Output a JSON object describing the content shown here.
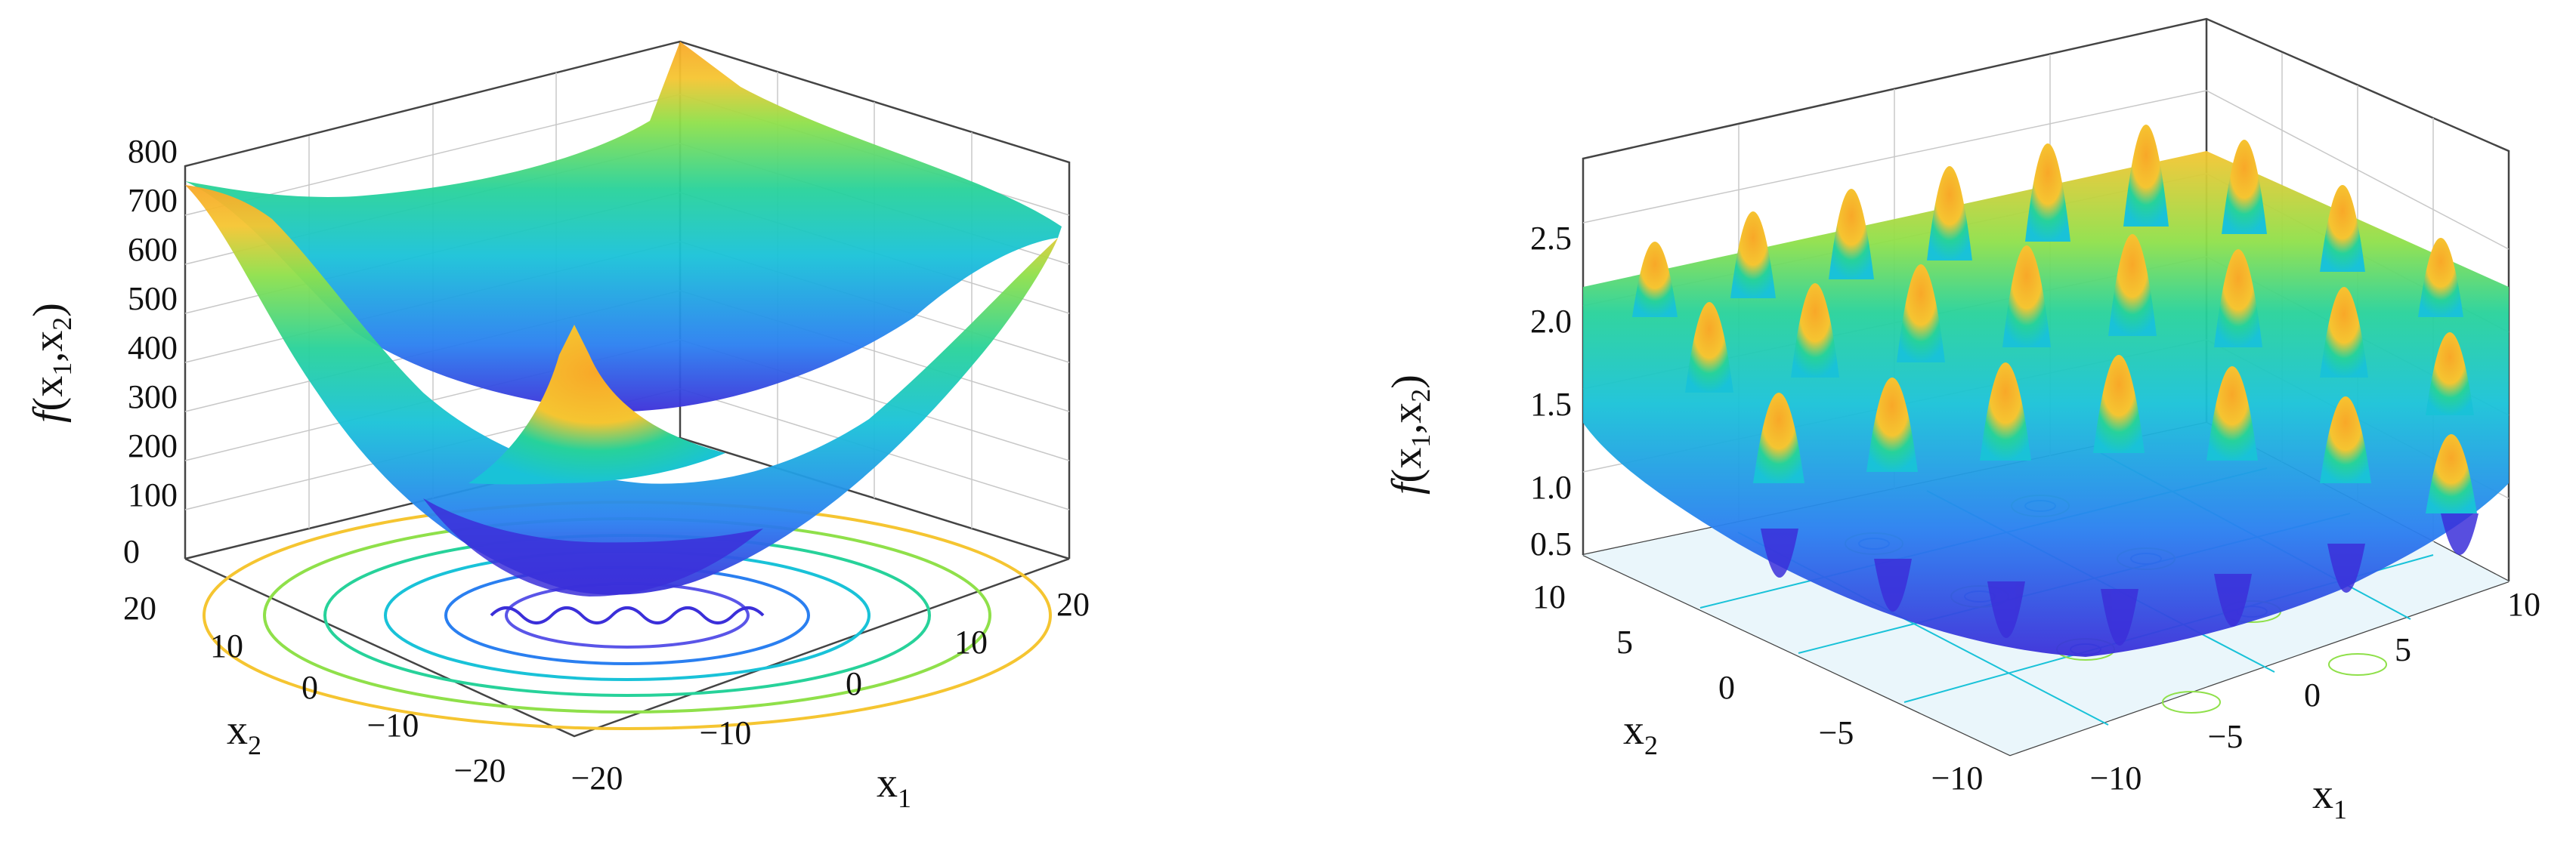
{
  "chart_data": [
    {
      "type": "surface3d",
      "title": "",
      "function_shape": "bowl (quadratic plus cosine ripple)",
      "zlabel": {
        "name": "f",
        "args": [
          "x",
          "1",
          "x",
          "2"
        ]
      },
      "xlabel": {
        "base": "x",
        "sub": "1"
      },
      "ylabel": {
        "base": "x",
        "sub": "2"
      },
      "z_ticks": [
        "0",
        "100",
        "200",
        "300",
        "400",
        "500",
        "600",
        "700",
        "800"
      ],
      "x_ticks": [
        "−20",
        "−10",
        "0",
        "10",
        "20"
      ],
      "y_ticks": [
        "−20",
        "−10",
        "0",
        "10",
        "20"
      ],
      "zlim": [
        0,
        800
      ],
      "xlim": [
        -20,
        20
      ],
      "ylim": [
        -20,
        20
      ],
      "grid": true,
      "contour_on_floor": true,
      "colormap": [
        "#3b2fd9",
        "#2a7ff0",
        "#19c2d8",
        "#27d29a",
        "#8fe04a",
        "#f5c531",
        "#f8a828"
      ]
    },
    {
      "type": "surface3d",
      "title": "",
      "function_shape": "egg-crate (periodic peaks)",
      "zlabel": {
        "name": "f",
        "args": [
          "x",
          "1",
          "x",
          "2"
        ]
      },
      "xlabel": {
        "base": "x",
        "sub": "1"
      },
      "ylabel": {
        "base": "x",
        "sub": "2"
      },
      "z_ticks": [
        "0.5",
        "1.0",
        "1.5",
        "2.0",
        "2.5"
      ],
      "x_ticks": [
        "−10",
        "−5",
        "0",
        "5",
        "10"
      ],
      "y_ticks": [
        "−10",
        "−5",
        "0",
        "5",
        "10"
      ],
      "zlim": [
        0.5,
        2.9
      ],
      "xlim": [
        -10,
        10
      ],
      "ylim": [
        -10,
        10
      ],
      "grid": true,
      "contour_on_floor": true,
      "colormap": [
        "#3b2fd9",
        "#2a7ff0",
        "#19c2d8",
        "#27d29a",
        "#8fe04a",
        "#f5c531",
        "#f8a828"
      ]
    }
  ]
}
